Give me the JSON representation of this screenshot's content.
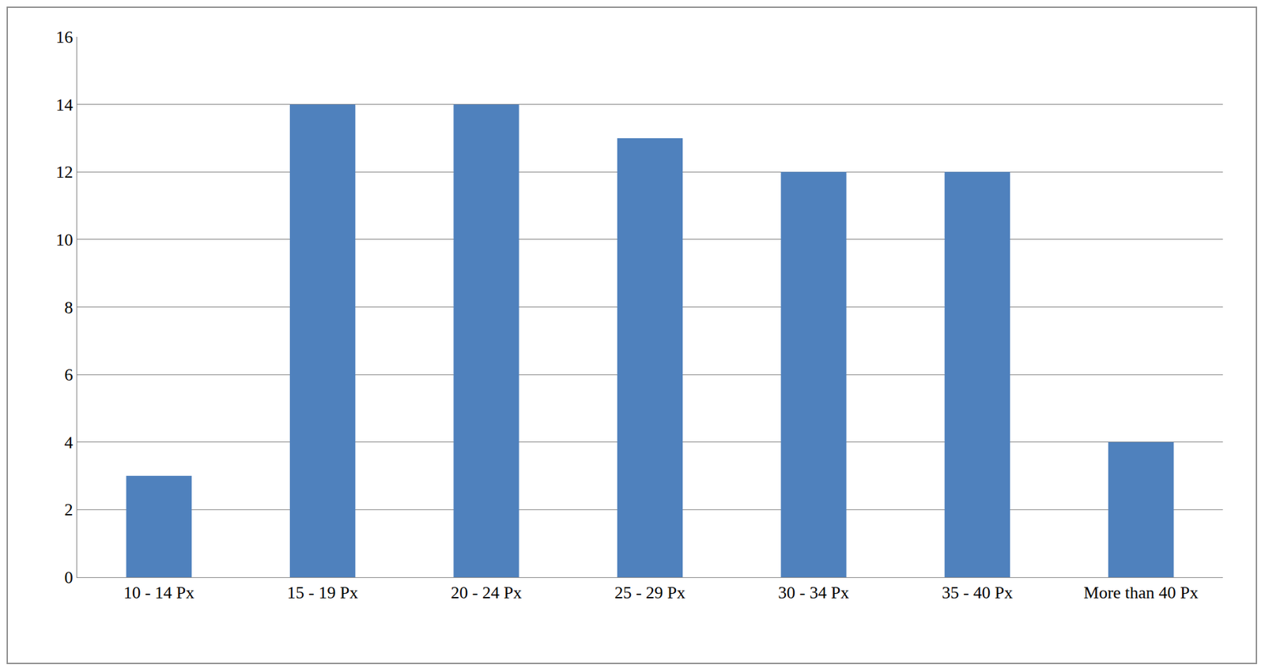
{
  "chart_data": {
    "type": "bar",
    "categories": [
      "10 - 14 Px",
      "15 - 19 Px",
      "20 - 24 Px",
      "25 - 29 Px",
      "30 - 34 Px",
      "35 - 40 Px",
      "More than 40 Px"
    ],
    "values": [
      3,
      14,
      14,
      13,
      12,
      12,
      4
    ],
    "color": "#4f81bd",
    "ylim": [
      0,
      16
    ],
    "yticks": [
      0,
      2,
      4,
      6,
      8,
      10,
      12,
      14,
      16
    ],
    "grid": true
  }
}
